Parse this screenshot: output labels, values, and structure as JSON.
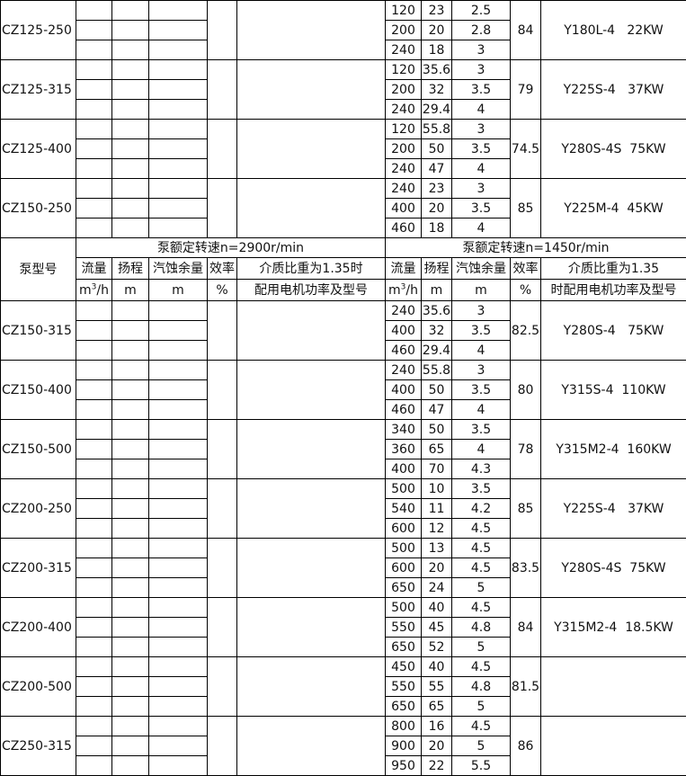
{
  "header": {
    "model_label": "泵型号",
    "speed_2900": "泵额定转速n=2900r/min",
    "speed_1450": "泵额定转速n=1450r/min",
    "flow": "流量",
    "head": "扬程",
    "npsh": "汽蚀余量",
    "efficiency": "效率",
    "motor_left_line1": "介质比重为1.35时",
    "motor_left_line2": "配用电机功率及型号",
    "motor_right_line1": "介质比重为1.35",
    "motor_right_line2": "时配用电机功率及型号",
    "unit_flow_base": "m",
    "unit_flow_sup": "3",
    "unit_flow_tail": "/h",
    "unit_head": "m",
    "unit_npsh": "m",
    "unit_eff": "%"
  },
  "groups_top": [
    {
      "model": "CZ125-250",
      "rows": [
        [
          "120",
          "23",
          "2.5"
        ],
        [
          "200",
          "20",
          "2.8"
        ],
        [
          "240",
          "18",
          "3"
        ]
      ],
      "eff": "84",
      "motor": "Y180L-4   22KW"
    },
    {
      "model": "CZ125-315",
      "rows": [
        [
          "120",
          "35.6",
          "3"
        ],
        [
          "200",
          "32",
          "3.5"
        ],
        [
          "240",
          "29.4",
          "4"
        ]
      ],
      "eff": "79",
      "motor": "Y225S-4   37KW"
    },
    {
      "model": "CZ125-400",
      "rows": [
        [
          "120",
          "55.8",
          "3"
        ],
        [
          "200",
          "50",
          "3.5"
        ],
        [
          "240",
          "47",
          "4"
        ]
      ],
      "eff": "74.5",
      "motor": "Y280S-4S  75KW"
    },
    {
      "model": "CZ150-250",
      "rows": [
        [
          "240",
          "23",
          "3"
        ],
        [
          "400",
          "20",
          "3.5"
        ],
        [
          "460",
          "18",
          "4"
        ]
      ],
      "eff": "85",
      "motor": "Y225M-4  45KW"
    }
  ],
  "groups_bottom": [
    {
      "model": "CZ150-315",
      "rows": [
        [
          "240",
          "35.6",
          "3"
        ],
        [
          "400",
          "32",
          "3.5"
        ],
        [
          "460",
          "29.4",
          "4"
        ]
      ],
      "eff": "82.5",
      "motor": "Y280S-4   75KW"
    },
    {
      "model": "CZ150-400",
      "rows": [
        [
          "240",
          "55.8",
          "3"
        ],
        [
          "400",
          "50",
          "3.5"
        ],
        [
          "460",
          "47",
          "4"
        ]
      ],
      "eff": "80",
      "motor": "Y315S-4  110KW"
    },
    {
      "model": "CZ150-500",
      "rows": [
        [
          "340",
          "50",
          "3.5"
        ],
        [
          "360",
          "65",
          "4"
        ],
        [
          "400",
          "70",
          "4.3"
        ]
      ],
      "eff": "78",
      "motor": "Y315M2-4  160KW"
    },
    {
      "model": "CZ200-250",
      "rows": [
        [
          "500",
          "10",
          "3.5"
        ],
        [
          "540",
          "11",
          "4.2"
        ],
        [
          "600",
          "12",
          "4.5"
        ]
      ],
      "eff": "85",
      "motor": "Y225S-4   37KW"
    },
    {
      "model": "CZ200-315",
      "rows": [
        [
          "500",
          "13",
          "4.5"
        ],
        [
          "600",
          "20",
          "4.5"
        ],
        [
          "650",
          "24",
          "5"
        ]
      ],
      "eff": "83.5",
      "motor": "Y280S-4S  75KW"
    },
    {
      "model": "CZ200-400",
      "rows": [
        [
          "500",
          "40",
          "4.5"
        ],
        [
          "550",
          "45",
          "4.8"
        ],
        [
          "650",
          "52",
          "5"
        ]
      ],
      "eff": "84",
      "motor": "Y315M2-4  18.5KW"
    },
    {
      "model": "CZ200-500",
      "rows": [
        [
          "450",
          "40",
          "4.5"
        ],
        [
          "550",
          "55",
          "4.8"
        ],
        [
          "650",
          "65",
          "5"
        ]
      ],
      "eff": "81.5",
      "motor": ""
    },
    {
      "model": "CZ250-315",
      "rows": [
        [
          "800",
          "16",
          "4.5"
        ],
        [
          "900",
          "20",
          "5"
        ],
        [
          "950",
          "22",
          "5.5"
        ]
      ],
      "eff": "86",
      "motor": ""
    }
  ]
}
